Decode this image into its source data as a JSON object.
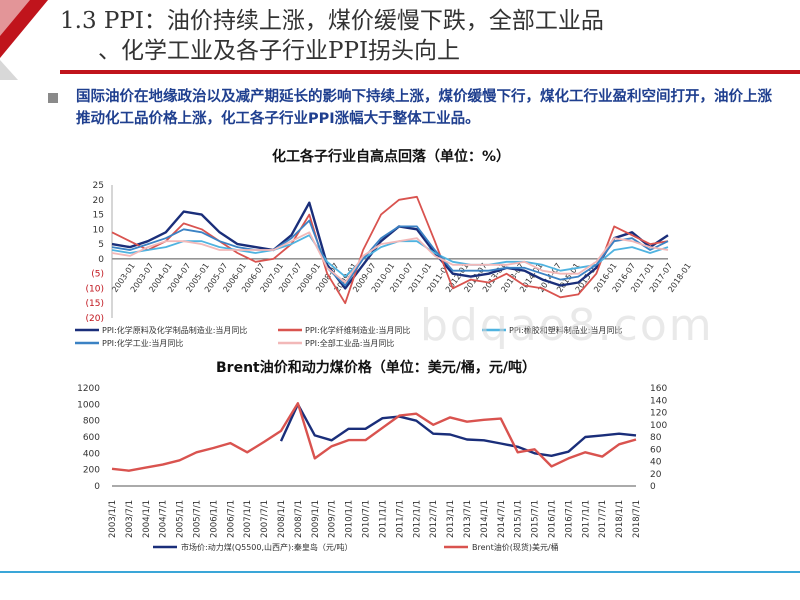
{
  "slide": {
    "title_line1": "1.3 PPI：油价持续上涨，煤价缓慢下跌，全部工业品",
    "title_line2": "、化学工业及各子行业PPI拐头向上",
    "description": "国际油价在地缘政治以及减产期延长的影响下持续上涨，煤价缓慢下行，煤化工行业盈利空间打开，油价上涨推动化工品价格上涨，化工各子行业PPI涨幅大于整体工业品。",
    "watermark": "bdqao8.com",
    "accent_color": "#c0141c"
  },
  "chart_data": [
    {
      "type": "line",
      "title": "化工各子行业自高点回落（单位：%）",
      "y_tick_labels": [
        "25",
        "20",
        "15",
        "10",
        "5",
        "0",
        "(5)",
        "(10)",
        "(15)",
        "(20)"
      ],
      "ylim": [
        -20,
        25
      ],
      "x_tick_labels": [
        "2003-01",
        "2003-07",
        "2004-01",
        "2004-07",
        "2005-01",
        "2005-07",
        "2006-01",
        "2006-07",
        "2007-01",
        "2007-07",
        "2008-01",
        "2008-07",
        "2009-01",
        "2009-07",
        "2010-01",
        "2010-07",
        "2011-01",
        "2011-07",
        "2012-01",
        "2012-07",
        "2013-01",
        "2013-07",
        "2014-01",
        "2014-07",
        "2015-01",
        "2015-07",
        "2016-01",
        "2016-07",
        "2017-01",
        "2017-07",
        "2018-01"
      ],
      "x": [
        "2003-01",
        "2003-07",
        "2004-01",
        "2004-07",
        "2005-01",
        "2005-07",
        "2006-01",
        "2006-07",
        "2007-01",
        "2007-07",
        "2008-01",
        "2008-07",
        "2009-01",
        "2009-07",
        "2010-01",
        "2010-07",
        "2011-01",
        "2011-07",
        "2012-01",
        "2012-07",
        "2013-01",
        "2013-07",
        "2014-01",
        "2014-07",
        "2015-01",
        "2015-07",
        "2016-01",
        "2016-07",
        "2017-01",
        "2017-07",
        "2018-01",
        "2018-04"
      ],
      "series": [
        {
          "name": "PPI:化学原料及化学制品制造业:当月同比",
          "color": "#1a2e7a",
          "values": [
            5,
            4,
            6,
            9,
            16,
            15,
            9,
            5,
            4,
            3,
            8,
            19,
            -2,
            -10,
            -2,
            6,
            11,
            10,
            2,
            -5,
            -6,
            -5,
            -3,
            -4,
            -7,
            -9,
            -8,
            -3,
            7,
            9,
            4,
            8
          ]
        },
        {
          "name": "PPI:化学纤维制造业:当月同比",
          "color": "#d9534f",
          "values": [
            9,
            6,
            3,
            6,
            12,
            10,
            6,
            2,
            -1,
            0,
            5,
            15,
            -5,
            -15,
            3,
            15,
            20,
            21,
            6,
            -10,
            -7,
            -8,
            -5,
            -9,
            -10,
            -13,
            -12,
            -5,
            11,
            8,
            5,
            6
          ]
        },
        {
          "name": "PPI:橡胶和塑料制品业:当月同比",
          "color": "#4fb3e0",
          "values": [
            3,
            2,
            3,
            4,
            6,
            6,
            4,
            3,
            2,
            3,
            5,
            8,
            -1,
            -6,
            0,
            4,
            6,
            6,
            2,
            -1,
            -2,
            -2,
            -1,
            -1,
            -2,
            -4,
            -3,
            -2,
            3,
            4,
            2,
            4
          ]
        },
        {
          "name": "PPI:化学工业:当月同比",
          "color": "#3b82c4",
          "values": [
            4,
            3,
            5,
            7,
            10,
            9,
            6,
            4,
            3,
            3,
            7,
            13,
            -3,
            -9,
            0,
            7,
            11,
            11,
            3,
            -4,
            -4,
            -4,
            -3,
            -3,
            -5,
            -7,
            -6,
            -2,
            6,
            7,
            3,
            6
          ]
        },
        {
          "name": "PPI:全部工业品:当月同比",
          "color": "#f2b8b8",
          "values": [
            2,
            1,
            4,
            6,
            6,
            5,
            3,
            3,
            3,
            3,
            6,
            9,
            -3,
            -8,
            1,
            5,
            6,
            7,
            1,
            -2,
            -2,
            -2,
            -2,
            -1,
            -4,
            -5,
            -5,
            -1,
            7,
            6,
            4,
            3
          ]
        }
      ]
    },
    {
      "type": "line",
      "title": "Brent油价和动力煤价格（单位：美元/桶，元/吨）",
      "y_tick_labels_left": [
        "1200",
        "1000",
        "800",
        "600",
        "400",
        "200",
        "0"
      ],
      "y_tick_labels_right": [
        "160",
        "140",
        "120",
        "100",
        "80",
        "60",
        "40",
        "20",
        "0"
      ],
      "ylim_left": [
        0,
        1200
      ],
      "ylim_right": [
        0,
        160
      ],
      "x_tick_labels": [
        "2003/1/1",
        "2003/7/1",
        "2004/1/1",
        "2004/7/1",
        "2005/1/1",
        "2005/7/1",
        "2006/1/1",
        "2006/7/1",
        "2007/1/1",
        "2007/7/1",
        "2008/1/1",
        "2008/7/1",
        "2009/1/1",
        "2009/7/1",
        "2010/1/1",
        "2010/7/1",
        "2011/1/1",
        "2011/7/1",
        "2012/1/1",
        "2012/7/1",
        "2013/1/1",
        "2013/7/1",
        "2014/1/1",
        "2014/7/1",
        "2015/1/1",
        "2015/7/1",
        "2016/1/1",
        "2016/7/1",
        "2017/1/1",
        "2017/7/1",
        "2018/1/1",
        "2018/7/1"
      ],
      "x": [
        "2003-01",
        "2003-07",
        "2004-01",
        "2004-07",
        "2005-01",
        "2005-07",
        "2006-01",
        "2006-07",
        "2007-01",
        "2007-07",
        "2008-01",
        "2008-07",
        "2009-01",
        "2009-07",
        "2010-01",
        "2010-07",
        "2011-01",
        "2011-07",
        "2012-01",
        "2012-07",
        "2013-01",
        "2013-07",
        "2014-01",
        "2014-07",
        "2015-01",
        "2015-07",
        "2016-01",
        "2016-07",
        "2017-01",
        "2017-07",
        "2018-01",
        "2018-07"
      ],
      "series": [
        {
          "name": "市场价:动力煤(Q5500,山西产):秦皇岛（元/吨）",
          "axis": "left",
          "color": "#1a2e7a",
          "values": [
            null,
            null,
            null,
            null,
            null,
            null,
            null,
            null,
            null,
            null,
            550,
            1000,
            620,
            560,
            700,
            700,
            830,
            850,
            800,
            640,
            630,
            570,
            560,
            520,
            480,
            400,
            370,
            420,
            600,
            620,
            640,
            620
          ]
        },
        {
          "name": "Brent油价(现货)美元/桶",
          "axis": "right",
          "color": "#d9534f",
          "values": [
            28,
            25,
            30,
            35,
            42,
            55,
            62,
            70,
            55,
            72,
            90,
            135,
            45,
            65,
            75,
            75,
            95,
            115,
            118,
            100,
            112,
            105,
            108,
            110,
            55,
            60,
            32,
            45,
            55,
            48,
            68,
            76
          ]
        }
      ]
    }
  ]
}
